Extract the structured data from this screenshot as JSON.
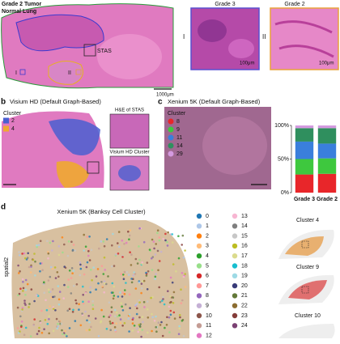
{
  "panel_a": {
    "legend": [
      {
        "label": "Grade 2 Tumor",
        "color": "#c9a200"
      },
      {
        "label": "Normal Lung",
        "color": "#3a9a2a"
      }
    ],
    "roi_label": "STAS",
    "roi_markers": [
      "I",
      "II"
    ],
    "scale_bar": "1000μm",
    "insets": [
      {
        "marker": "I",
        "title": "Grade 3",
        "scale": "100μm",
        "color": "#5a4fcf"
      },
      {
        "marker": "II",
        "title": "Grade 2",
        "scale": "100μm",
        "color": "#e8a23a"
      }
    ]
  },
  "panel_b": {
    "letter": "b",
    "title": "Visium HD (Default Graph-Based)",
    "legend_title": "Cluster",
    "clusters": [
      {
        "label": "2",
        "color": "#4a5fd0"
      },
      {
        "label": "4",
        "color": "#f0a830"
      }
    ],
    "inset_titles": [
      "H&E of STAS",
      "Visium HD Cluster"
    ]
  },
  "chart_data": {
    "type": "stacked_bar",
    "letter": "c",
    "title": "Xenium 5K (Default Graph-Based)",
    "legend_title": "Cluster",
    "categories": [
      "Grade 3",
      "Grade 2"
    ],
    "category_colors": [
      "#2a5fd8",
      "#e89a20"
    ],
    "series": [
      {
        "name": "8",
        "color": "#e8262a",
        "values": [
          27,
          28
        ]
      },
      {
        "name": "9",
        "color": "#3ec83e",
        "values": [
          23,
          23
        ]
      },
      {
        "name": "11",
        "color": "#3a7fdc",
        "values": [
          26,
          22
        ]
      },
      {
        "name": "14",
        "color": "#2f8f5e",
        "values": [
          20,
          23
        ]
      },
      {
        "name": "29",
        "color": "#d49ae0",
        "values": [
          4,
          4
        ]
      }
    ],
    "ylim": [
      0,
      100
    ],
    "yticks": [
      {
        "value": 0,
        "label": "0%"
      },
      {
        "value": 50,
        "label": "50%"
      },
      {
        "value": 100,
        "label": "100%"
      }
    ]
  },
  "panel_d": {
    "letter": "d",
    "title": "Xenium 5K (Banksy Cell Cluster)",
    "y_axis_label": "spatial2",
    "clusters": [
      {
        "label": "0",
        "color": "#1f77b4"
      },
      {
        "label": "1",
        "color": "#aec7e8"
      },
      {
        "label": "2",
        "color": "#ff7f0e"
      },
      {
        "label": "3",
        "color": "#ffbb78"
      },
      {
        "label": "4",
        "color": "#2ca02c"
      },
      {
        "label": "5",
        "color": "#98df8a"
      },
      {
        "label": "6",
        "color": "#d62728"
      },
      {
        "label": "7",
        "color": "#ff9896"
      },
      {
        "label": "8",
        "color": "#9467bd"
      },
      {
        "label": "9",
        "color": "#c5b0d5"
      },
      {
        "label": "10",
        "color": "#8c564b"
      },
      {
        "label": "11",
        "color": "#c49c94"
      },
      {
        "label": "12",
        "color": "#e377c2"
      },
      {
        "label": "13",
        "color": "#f7b6d2"
      },
      {
        "label": "14",
        "color": "#7f7f7f"
      },
      {
        "label": "15",
        "color": "#c7c7c7"
      },
      {
        "label": "16",
        "color": "#bcbd22"
      },
      {
        "label": "17",
        "color": "#dbdb8d"
      },
      {
        "label": "18",
        "color": "#17becf"
      },
      {
        "label": "19",
        "color": "#9edae5"
      },
      {
        "label": "20",
        "color": "#393b79"
      },
      {
        "label": "21",
        "color": "#637939"
      },
      {
        "label": "22",
        "color": "#8c6d31"
      },
      {
        "label": "23",
        "color": "#843c39"
      },
      {
        "label": "24",
        "color": "#7b4173"
      }
    ],
    "highlight_titles": [
      "Cluster 4",
      "Cluster 9",
      "Cluster 10"
    ]
  }
}
